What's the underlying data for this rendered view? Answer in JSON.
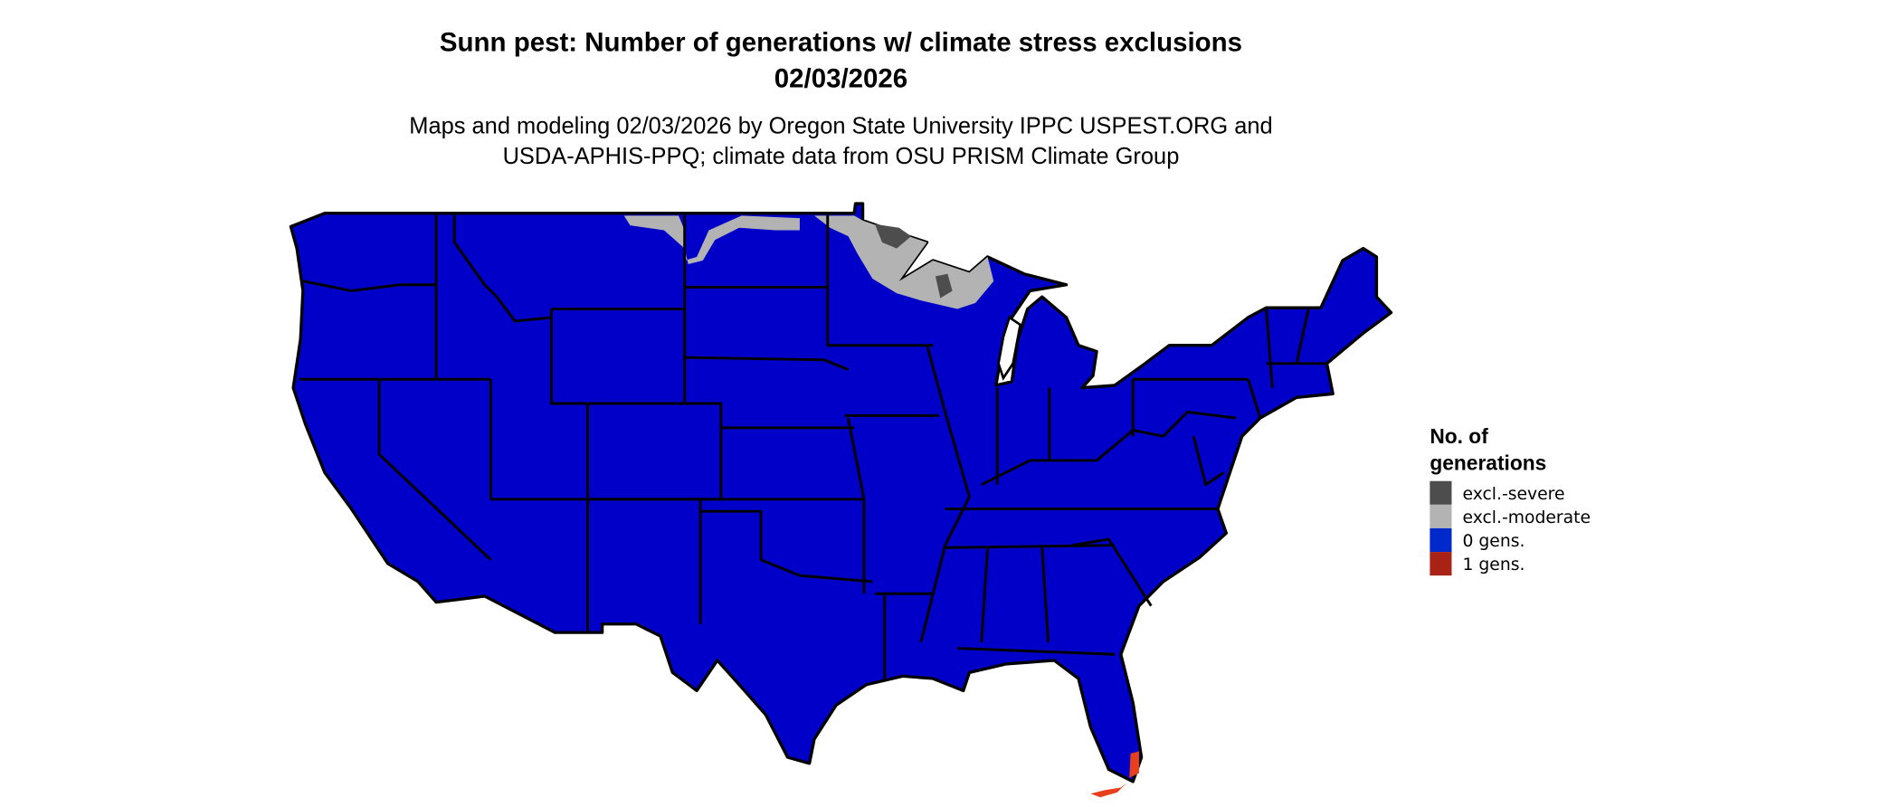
{
  "title": {
    "line1": "Sunn pest: Number of generations w/ climate stress exclusions",
    "line2": "02/03/2026"
  },
  "subtitle": {
    "line1": "Maps and modeling 02/03/2026 by Oregon State University IPPC USPEST.ORG and",
    "line2": "USDA-APHIS-PPQ; climate data from OSU PRISM Climate Group"
  },
  "legend": {
    "title_line1": "No. of",
    "title_line2": "generations",
    "items": [
      {
        "label": "excl.-severe",
        "color": "#4d4d4d"
      },
      {
        "label": "excl.-moderate",
        "color": "#b3b3b3"
      },
      {
        "label": "0 gens.",
        "color": "#0029cc"
      },
      {
        "label": "1 gens.",
        "color": "#a82315"
      }
    ]
  },
  "map": {
    "region": "Contiguous United States",
    "dominant_class": "0 gens.",
    "fill_color": "#0000c8",
    "moderate_exclusion_areas": [
      "northern North Dakota",
      "northern Minnesota",
      "northern Wisconsin"
    ],
    "severe_exclusion_areas": [
      "northeastern Minnesota",
      "northern Wisconsin"
    ],
    "one_generation_areas": [
      "southern Florida"
    ]
  }
}
